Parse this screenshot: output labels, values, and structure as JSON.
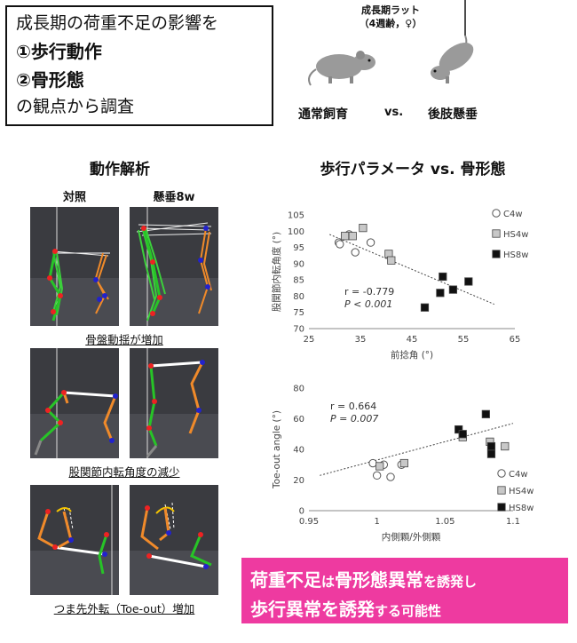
{
  "summary": {
    "line1": "成長期の荷重不足の影響を",
    "line2": "①歩行動作",
    "line3": "②骨形態",
    "line4": "の観点から調査"
  },
  "rats": {
    "label": "成長期ラット",
    "sublabel": "（4週齢，♀）",
    "left_label": "通常飼育",
    "vs": "vs.",
    "right_label": "後肢懸垂"
  },
  "motion": {
    "title": "動作解析",
    "col_control": "対照",
    "col_suspended": "懸垂8w",
    "caption1": "骨盤動揺が増加",
    "caption2": "股関節内転角度の減少",
    "caption3": "つま先外転（Toe-out）増加"
  },
  "right_title": "歩行パラメータ vs. 骨形態",
  "chart_data": [
    {
      "type": "scatter",
      "xlabel": "前捻角 (°)",
      "ylabel": "股関節内転角度 (°)",
      "xlim": [
        25,
        65
      ],
      "ylim": [
        70,
        105
      ],
      "xticks": [
        "25",
        "35",
        "45",
        "55",
        "65"
      ],
      "yticks": [
        "70",
        "75",
        "80",
        "85",
        "90",
        "95",
        "100",
        "105"
      ],
      "legend_position": "right",
      "annotation_r": "r = -0.779",
      "annotation_p": "P < 0.001",
      "trendline": {
        "x": [
          29,
          61
        ],
        "y": [
          99,
          77.5
        ]
      },
      "series": [
        {
          "name": "C4w",
          "marker": "open-circle",
          "x": [
            30.8,
            31.0,
            32.8,
            34.0,
            37.0
          ],
          "y": [
            96.5,
            96.0,
            99.0,
            93.5,
            96.5
          ]
        },
        {
          "name": "HS4w",
          "marker": "gray-square",
          "x": [
            32.0,
            33.5,
            35.5,
            40.5,
            41.0
          ],
          "y": [
            98.5,
            98.5,
            101.0,
            93.0,
            91.0
          ]
        },
        {
          "name": "HS8w",
          "marker": "black-square",
          "x": [
            47.5,
            50.5,
            51.0,
            53.0,
            56.0
          ],
          "y": [
            76.5,
            81.0,
            86.0,
            82.0,
            84.5
          ]
        }
      ]
    },
    {
      "type": "scatter",
      "xlabel": "内側顆/外側顆",
      "ylabel": "Toe-out angle (°)",
      "xlim": [
        0.95,
        1.1
      ],
      "ylim": [
        0,
        80
      ],
      "xticks": [
        "0.95",
        "1",
        "1.05",
        "1.1"
      ],
      "yticks": [
        "0",
        "20",
        "40",
        "60",
        "80"
      ],
      "legend_position": "bottom-right",
      "annotation_r": "r = 0.664",
      "annotation_p": "P = 0.007",
      "trendline": {
        "x": [
          0.958,
          1.1
        ],
        "y": [
          23,
          57
        ]
      },
      "series": [
        {
          "name": "C4w",
          "marker": "open-circle",
          "x": [
            0.997,
            1.0,
            1.005,
            1.01,
            1.018
          ],
          "y": [
            31,
            23,
            30,
            22,
            30
          ]
        },
        {
          "name": "HS4w",
          "marker": "gray-square",
          "x": [
            1.002,
            1.02,
            1.063,
            1.083,
            1.094
          ],
          "y": [
            29,
            31,
            48,
            45,
            42
          ]
        },
        {
          "name": "HS8w",
          "marker": "black-square",
          "x": [
            1.06,
            1.063,
            1.08,
            1.084,
            1.084
          ],
          "y": [
            53,
            50,
            63,
            42,
            37
          ]
        }
      ]
    }
  ],
  "conclusion": {
    "l1_a": "荷重不足",
    "l1_b": "は",
    "l1_c": "骨形態異常",
    "l1_d": "を誘発し",
    "l2_a": "歩行異常を誘発",
    "l2_b": "する可能性"
  },
  "colors": {
    "accent_pink": "#ee3aa0",
    "marker_gray": "#c8c8c8",
    "trend_dash": "#444444"
  }
}
